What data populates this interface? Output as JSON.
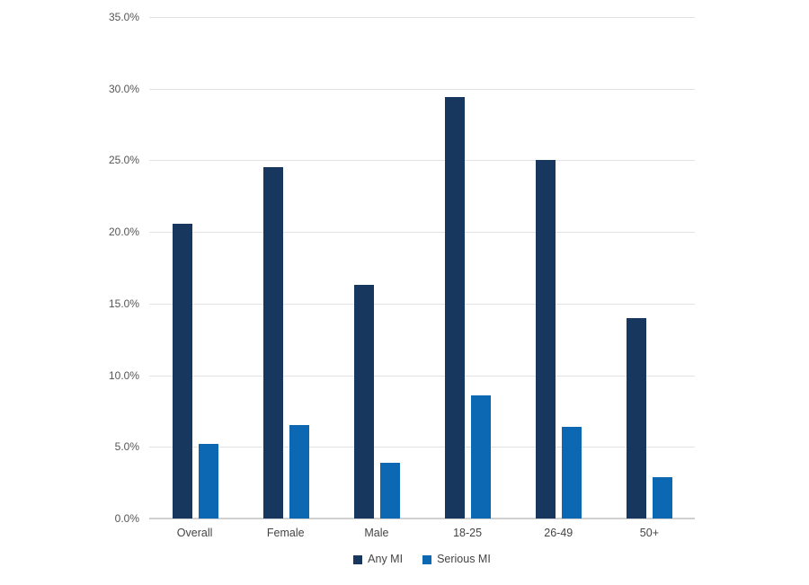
{
  "chart_data": {
    "type": "bar",
    "title": "",
    "xlabel": "",
    "ylabel": "",
    "categories": [
      "Overall",
      "Female",
      "Male",
      "18-25",
      "26-49",
      "50+"
    ],
    "series": [
      {
        "name": "Any MI",
        "color": "#17375E",
        "values": [
          20.6,
          24.5,
          16.3,
          29.4,
          25.0,
          14.0
        ]
      },
      {
        "name": "Serious MI",
        "color": "#0D68B4",
        "values": [
          5.2,
          6.5,
          3.9,
          8.6,
          6.4,
          2.9
        ]
      }
    ],
    "ylim": [
      0,
      35
    ],
    "ytick_step": 5,
    "ytick_labels": [
      "0.0%",
      "5.0%",
      "10.0%",
      "15.0%",
      "20.0%",
      "25.0%",
      "30.0%",
      "35.0%"
    ],
    "grid": "horizontal",
    "legend_position": "bottom",
    "background_color": "#FFFFFF",
    "gridline_color": "#E2E2E2",
    "tick_label_color": "#555555"
  }
}
